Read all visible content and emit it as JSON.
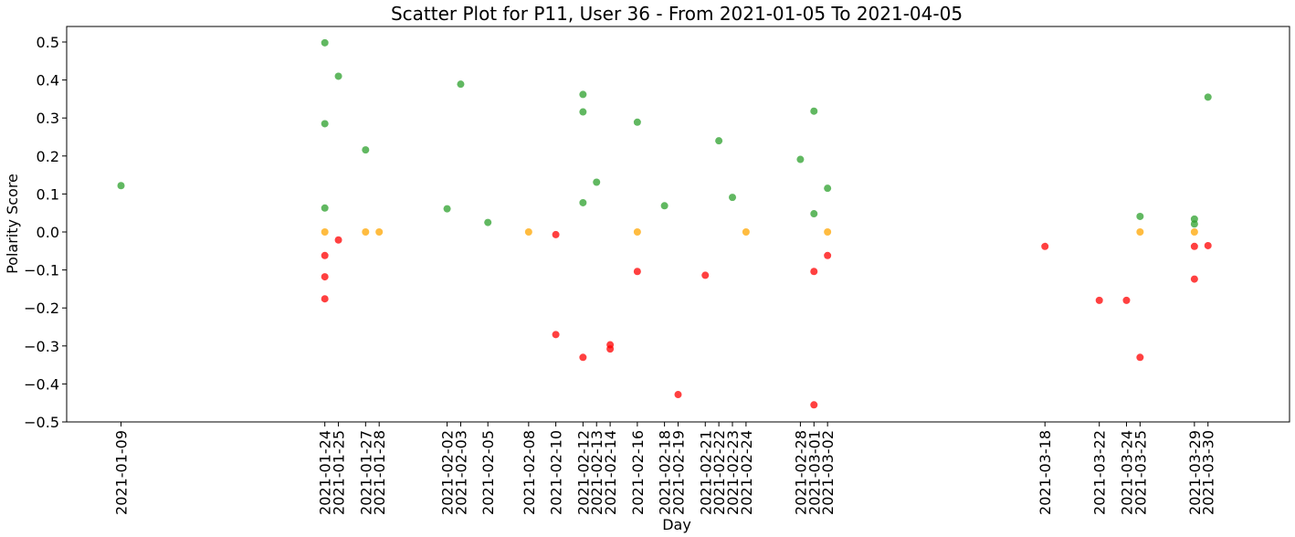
{
  "chart_data": {
    "type": "scatter",
    "title": "Scatter Plot for P11, User 36 - From 2021-01-05 To 2021-04-05",
    "xlabel": "Day",
    "ylabel": "Polarity Score",
    "ylim": [
      -0.5,
      0.5
    ],
    "xlim": [
      "2021-01-05",
      "2021-04-05"
    ],
    "yticks": [
      -0.5,
      -0.4,
      -0.3,
      -0.2,
      -0.1,
      0.0,
      0.1,
      0.2,
      0.3,
      0.4,
      0.5
    ],
    "ytick_labels": [
      "−0.5",
      "−0.4",
      "−0.3",
      "−0.2",
      "−0.1",
      "0.0",
      "0.1",
      "0.2",
      "0.3",
      "0.4",
      "0.5"
    ],
    "xtick_labels": [
      "2021-01-09",
      "2021-01-24",
      "2021-01-25",
      "2021-01-27",
      "2021-01-28",
      "2021-02-02",
      "2021-02-03",
      "2021-02-05",
      "2021-02-08",
      "2021-02-10",
      "2021-02-12",
      "2021-02-13",
      "2021-02-14",
      "2021-02-16",
      "2021-02-18",
      "2021-02-19",
      "2021-02-21",
      "2021-02-22",
      "2021-02-23",
      "2021-02-24",
      "2021-02-28",
      "2021-03-01",
      "2021-03-02",
      "2021-03-18",
      "2021-03-22",
      "2021-03-24",
      "2021-03-25",
      "2021-03-29",
      "2021-03-30"
    ],
    "grid": false,
    "legend": false,
    "colors": {
      "positive": "#2ca02c",
      "neutral": "#ffa500",
      "negative": "#ff0000"
    },
    "points": [
      {
        "x": "2021-01-09",
        "y": 0.122,
        "sentiment": "positive"
      },
      {
        "x": "2021-01-24",
        "y": 0.498,
        "sentiment": "positive"
      },
      {
        "x": "2021-01-24",
        "y": 0.285,
        "sentiment": "positive"
      },
      {
        "x": "2021-01-24",
        "y": 0.063,
        "sentiment": "positive"
      },
      {
        "x": "2021-01-24",
        "y": 0.0,
        "sentiment": "neutral"
      },
      {
        "x": "2021-01-24",
        "y": -0.062,
        "sentiment": "negative"
      },
      {
        "x": "2021-01-24",
        "y": -0.118,
        "sentiment": "negative"
      },
      {
        "x": "2021-01-24",
        "y": -0.176,
        "sentiment": "negative"
      },
      {
        "x": "2021-01-25",
        "y": 0.41,
        "sentiment": "positive"
      },
      {
        "x": "2021-01-25",
        "y": -0.021,
        "sentiment": "negative"
      },
      {
        "x": "2021-01-27",
        "y": 0.216,
        "sentiment": "positive"
      },
      {
        "x": "2021-01-27",
        "y": 0.0,
        "sentiment": "neutral"
      },
      {
        "x": "2021-01-28",
        "y": 0.0,
        "sentiment": "neutral"
      },
      {
        "x": "2021-02-02",
        "y": 0.061,
        "sentiment": "positive"
      },
      {
        "x": "2021-02-03",
        "y": 0.389,
        "sentiment": "positive"
      },
      {
        "x": "2021-02-05",
        "y": 0.025,
        "sentiment": "positive"
      },
      {
        "x": "2021-02-08",
        "y": 0.0,
        "sentiment": "neutral"
      },
      {
        "x": "2021-02-10",
        "y": -0.007,
        "sentiment": "negative"
      },
      {
        "x": "2021-02-10",
        "y": -0.27,
        "sentiment": "negative"
      },
      {
        "x": "2021-02-12",
        "y": 0.362,
        "sentiment": "positive"
      },
      {
        "x": "2021-02-12",
        "y": 0.316,
        "sentiment": "positive"
      },
      {
        "x": "2021-02-12",
        "y": 0.077,
        "sentiment": "positive"
      },
      {
        "x": "2021-02-12",
        "y": -0.33,
        "sentiment": "negative"
      },
      {
        "x": "2021-02-13",
        "y": 0.131,
        "sentiment": "positive"
      },
      {
        "x": "2021-02-14",
        "y": -0.297,
        "sentiment": "negative"
      },
      {
        "x": "2021-02-14",
        "y": -0.308,
        "sentiment": "negative"
      },
      {
        "x": "2021-02-16",
        "y": 0.289,
        "sentiment": "positive"
      },
      {
        "x": "2021-02-16",
        "y": 0.0,
        "sentiment": "neutral"
      },
      {
        "x": "2021-02-16",
        "y": -0.104,
        "sentiment": "negative"
      },
      {
        "x": "2021-02-18",
        "y": 0.069,
        "sentiment": "positive"
      },
      {
        "x": "2021-02-19",
        "y": -0.428,
        "sentiment": "negative"
      },
      {
        "x": "2021-02-21",
        "y": -0.114,
        "sentiment": "negative"
      },
      {
        "x": "2021-02-22",
        "y": 0.24,
        "sentiment": "positive"
      },
      {
        "x": "2021-02-23",
        "y": 0.091,
        "sentiment": "positive"
      },
      {
        "x": "2021-02-24",
        "y": 0.0,
        "sentiment": "neutral"
      },
      {
        "x": "2021-02-28",
        "y": 0.191,
        "sentiment": "positive"
      },
      {
        "x": "2021-03-01",
        "y": 0.318,
        "sentiment": "positive"
      },
      {
        "x": "2021-03-01",
        "y": 0.048,
        "sentiment": "positive"
      },
      {
        "x": "2021-03-01",
        "y": -0.104,
        "sentiment": "negative"
      },
      {
        "x": "2021-03-01",
        "y": -0.455,
        "sentiment": "negative"
      },
      {
        "x": "2021-03-02",
        "y": 0.115,
        "sentiment": "positive"
      },
      {
        "x": "2021-03-02",
        "y": 0.0,
        "sentiment": "neutral"
      },
      {
        "x": "2021-03-02",
        "y": -0.062,
        "sentiment": "negative"
      },
      {
        "x": "2021-03-18",
        "y": -0.038,
        "sentiment": "negative"
      },
      {
        "x": "2021-03-22",
        "y": -0.18,
        "sentiment": "negative"
      },
      {
        "x": "2021-03-24",
        "y": -0.18,
        "sentiment": "negative"
      },
      {
        "x": "2021-03-25",
        "y": 0.041,
        "sentiment": "positive"
      },
      {
        "x": "2021-03-25",
        "y": 0.0,
        "sentiment": "neutral"
      },
      {
        "x": "2021-03-25",
        "y": -0.33,
        "sentiment": "negative"
      },
      {
        "x": "2021-03-29",
        "y": 0.034,
        "sentiment": "positive"
      },
      {
        "x": "2021-03-29",
        "y": 0.021,
        "sentiment": "positive"
      },
      {
        "x": "2021-03-29",
        "y": 0.0,
        "sentiment": "neutral"
      },
      {
        "x": "2021-03-29",
        "y": -0.038,
        "sentiment": "negative"
      },
      {
        "x": "2021-03-29",
        "y": -0.124,
        "sentiment": "negative"
      },
      {
        "x": "2021-03-30",
        "y": 0.355,
        "sentiment": "positive"
      },
      {
        "x": "2021-03-30",
        "y": -0.036,
        "sentiment": "negative"
      }
    ]
  }
}
